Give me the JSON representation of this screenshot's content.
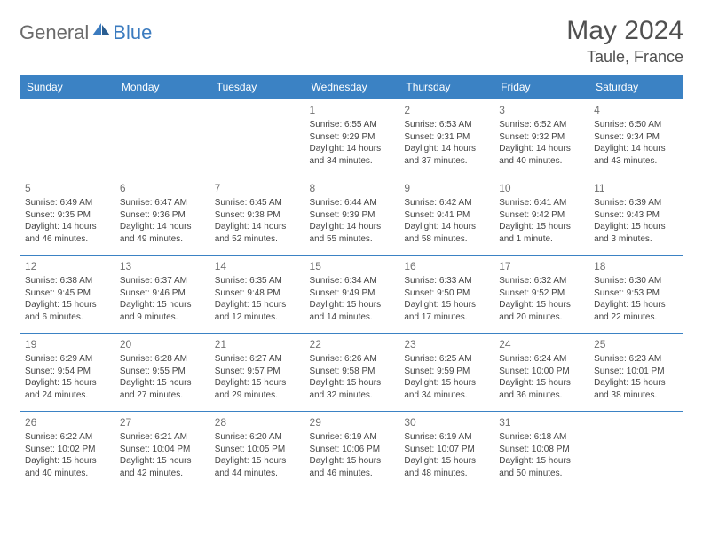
{
  "brand": {
    "part1": "General",
    "part2": "Blue"
  },
  "header": {
    "title": "May 2024",
    "location": "Taule, France"
  },
  "colors": {
    "header_bg": "#3b82c4",
    "header_text": "#ffffff",
    "border": "#3b82c4",
    "brand_gray": "#6a6a6a",
    "brand_blue": "#3b7bbf"
  },
  "dayNames": [
    "Sunday",
    "Monday",
    "Tuesday",
    "Wednesday",
    "Thursday",
    "Friday",
    "Saturday"
  ],
  "weeks": [
    [
      null,
      null,
      null,
      {
        "n": "1",
        "sr": "6:55 AM",
        "ss": "9:29 PM",
        "dl": "14 hours and 34 minutes."
      },
      {
        "n": "2",
        "sr": "6:53 AM",
        "ss": "9:31 PM",
        "dl": "14 hours and 37 minutes."
      },
      {
        "n": "3",
        "sr": "6:52 AM",
        "ss": "9:32 PM",
        "dl": "14 hours and 40 minutes."
      },
      {
        "n": "4",
        "sr": "6:50 AM",
        "ss": "9:34 PM",
        "dl": "14 hours and 43 minutes."
      }
    ],
    [
      {
        "n": "5",
        "sr": "6:49 AM",
        "ss": "9:35 PM",
        "dl": "14 hours and 46 minutes."
      },
      {
        "n": "6",
        "sr": "6:47 AM",
        "ss": "9:36 PM",
        "dl": "14 hours and 49 minutes."
      },
      {
        "n": "7",
        "sr": "6:45 AM",
        "ss": "9:38 PM",
        "dl": "14 hours and 52 minutes."
      },
      {
        "n": "8",
        "sr": "6:44 AM",
        "ss": "9:39 PM",
        "dl": "14 hours and 55 minutes."
      },
      {
        "n": "9",
        "sr": "6:42 AM",
        "ss": "9:41 PM",
        "dl": "14 hours and 58 minutes."
      },
      {
        "n": "10",
        "sr": "6:41 AM",
        "ss": "9:42 PM",
        "dl": "15 hours and 1 minute."
      },
      {
        "n": "11",
        "sr": "6:39 AM",
        "ss": "9:43 PM",
        "dl": "15 hours and 3 minutes."
      }
    ],
    [
      {
        "n": "12",
        "sr": "6:38 AM",
        "ss": "9:45 PM",
        "dl": "15 hours and 6 minutes."
      },
      {
        "n": "13",
        "sr": "6:37 AM",
        "ss": "9:46 PM",
        "dl": "15 hours and 9 minutes."
      },
      {
        "n": "14",
        "sr": "6:35 AM",
        "ss": "9:48 PM",
        "dl": "15 hours and 12 minutes."
      },
      {
        "n": "15",
        "sr": "6:34 AM",
        "ss": "9:49 PM",
        "dl": "15 hours and 14 minutes."
      },
      {
        "n": "16",
        "sr": "6:33 AM",
        "ss": "9:50 PM",
        "dl": "15 hours and 17 minutes."
      },
      {
        "n": "17",
        "sr": "6:32 AM",
        "ss": "9:52 PM",
        "dl": "15 hours and 20 minutes."
      },
      {
        "n": "18",
        "sr": "6:30 AM",
        "ss": "9:53 PM",
        "dl": "15 hours and 22 minutes."
      }
    ],
    [
      {
        "n": "19",
        "sr": "6:29 AM",
        "ss": "9:54 PM",
        "dl": "15 hours and 24 minutes."
      },
      {
        "n": "20",
        "sr": "6:28 AM",
        "ss": "9:55 PM",
        "dl": "15 hours and 27 minutes."
      },
      {
        "n": "21",
        "sr": "6:27 AM",
        "ss": "9:57 PM",
        "dl": "15 hours and 29 minutes."
      },
      {
        "n": "22",
        "sr": "6:26 AM",
        "ss": "9:58 PM",
        "dl": "15 hours and 32 minutes."
      },
      {
        "n": "23",
        "sr": "6:25 AM",
        "ss": "9:59 PM",
        "dl": "15 hours and 34 minutes."
      },
      {
        "n": "24",
        "sr": "6:24 AM",
        "ss": "10:00 PM",
        "dl": "15 hours and 36 minutes."
      },
      {
        "n": "25",
        "sr": "6:23 AM",
        "ss": "10:01 PM",
        "dl": "15 hours and 38 minutes."
      }
    ],
    [
      {
        "n": "26",
        "sr": "6:22 AM",
        "ss": "10:02 PM",
        "dl": "15 hours and 40 minutes."
      },
      {
        "n": "27",
        "sr": "6:21 AM",
        "ss": "10:04 PM",
        "dl": "15 hours and 42 minutes."
      },
      {
        "n": "28",
        "sr": "6:20 AM",
        "ss": "10:05 PM",
        "dl": "15 hours and 44 minutes."
      },
      {
        "n": "29",
        "sr": "6:19 AM",
        "ss": "10:06 PM",
        "dl": "15 hours and 46 minutes."
      },
      {
        "n": "30",
        "sr": "6:19 AM",
        "ss": "10:07 PM",
        "dl": "15 hours and 48 minutes."
      },
      {
        "n": "31",
        "sr": "6:18 AM",
        "ss": "10:08 PM",
        "dl": "15 hours and 50 minutes."
      },
      null
    ]
  ],
  "labels": {
    "sunrise": "Sunrise:",
    "sunset": "Sunset:",
    "daylight": "Daylight:"
  }
}
